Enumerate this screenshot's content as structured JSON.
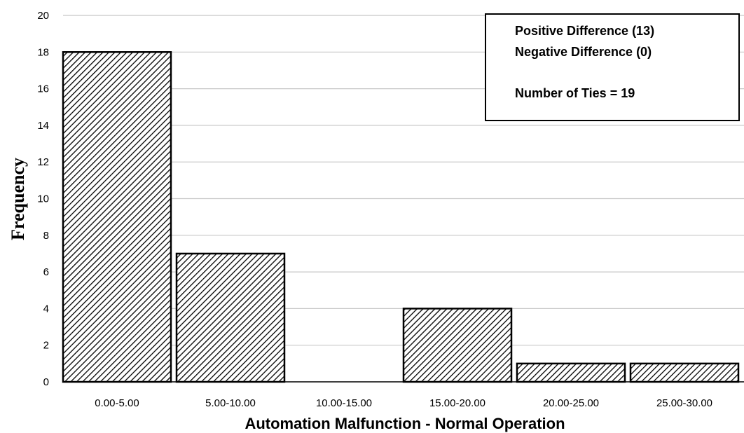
{
  "chart_data": {
    "type": "bar",
    "categories": [
      "0.00-5.00",
      "5.00-10.00",
      "10.00-15.00",
      "15.00-20.00",
      "20.00-25.00",
      "25.00-30.00"
    ],
    "values": [
      18,
      7,
      0,
      4,
      1,
      1
    ],
    "xlabel": "Automation Malfunction - Normal Operation",
    "ylabel": "Frequency",
    "ylim": [
      0,
      20
    ],
    "yticks": [
      "0",
      "2",
      "4",
      "6",
      "8",
      "10",
      "12",
      "14",
      "16",
      "18",
      "20"
    ],
    "grid": true,
    "bar_fill": "diagonal-hatch",
    "bar_color": "#000000",
    "grid_color": "#c8c8c8",
    "annotation": {
      "lines": [
        "Positive Difference (13)",
        "Negative Difference (0)",
        "Number of Ties = 19"
      ],
      "placement": "top-right"
    }
  }
}
